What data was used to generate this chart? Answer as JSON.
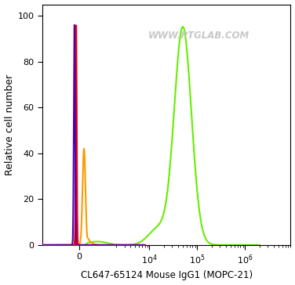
{
  "title": "",
  "xlabel": "CL647-65124 Mouse IgG1 (MOPC-21)",
  "ylabel": "Relative cell number",
  "ylim": [
    0,
    105
  ],
  "yticks": [
    0,
    20,
    40,
    60,
    80,
    100
  ],
  "watermark": "WWW.PTGLAB.COM",
  "watermark_color": "#c8c8c8",
  "bg_color": "#ffffff",
  "purple_color": "#5500aa",
  "red_color": "#ee0000",
  "orange_color": "#ff9900",
  "green_color": "#66ee00"
}
